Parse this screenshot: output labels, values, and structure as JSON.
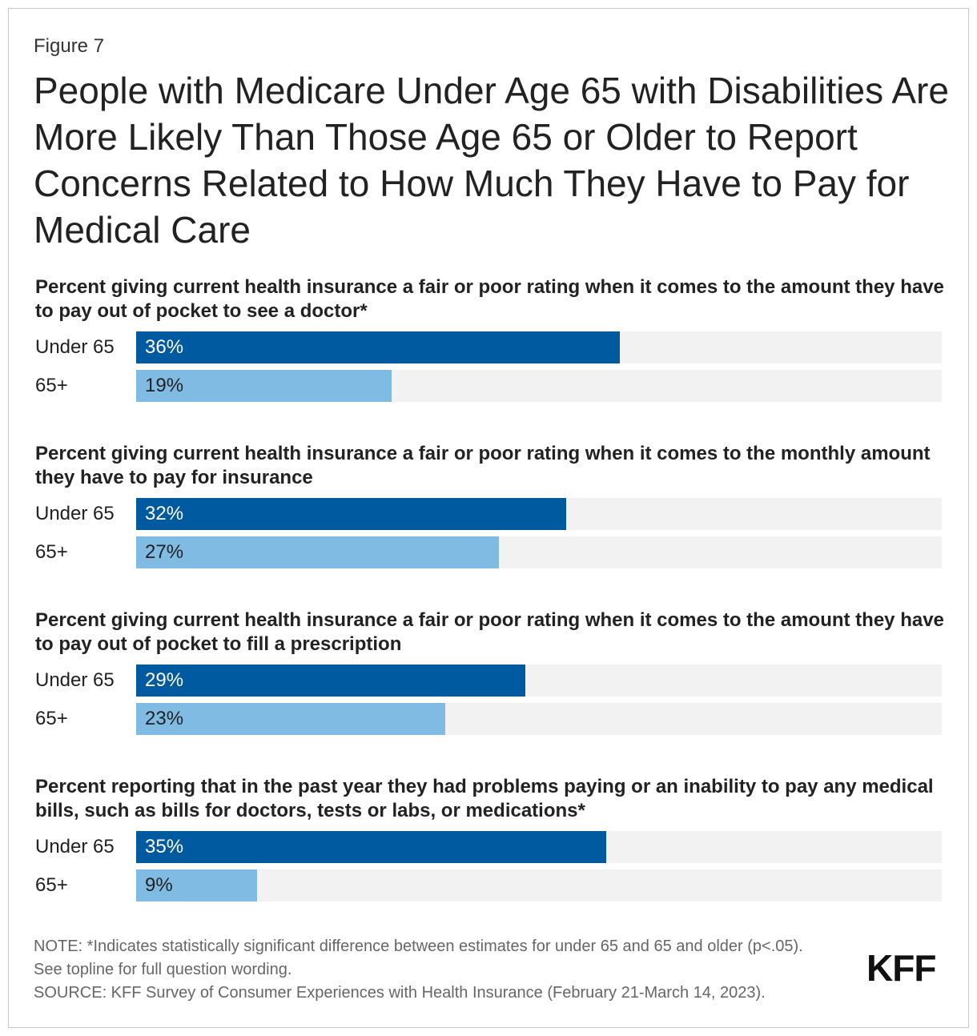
{
  "figure_label": "Figure 7",
  "title": "People with Medicare Under Age 65 with Disabilities Are More Likely Than Those Age 65 or Older to Report Concerns Related to How Much They Have to Pay for Medical Care",
  "colors": {
    "under65": "#005aa0",
    "over65": "#80bbe3",
    "track": "#f2f2f2",
    "under65_text": "#ffffff",
    "over65_text": "#222222"
  },
  "chart_data": {
    "type": "bar",
    "orientation": "horizontal",
    "xlim": [
      0,
      60
    ],
    "series_names": [
      "Under 65",
      "65+"
    ],
    "panels": [
      {
        "title": "Percent giving current health insurance a fair or poor rating when it comes to the amount they have to pay out of pocket to see a doctor*",
        "bars": [
          {
            "label": "Under 65",
            "value": 36,
            "value_label": "36%"
          },
          {
            "label": "65+",
            "value": 19,
            "value_label": "19%"
          }
        ]
      },
      {
        "title": "Percent giving current health insurance a fair or poor rating when it comes to the monthly amount they have to pay for insurance",
        "bars": [
          {
            "label": "Under 65",
            "value": 32,
            "value_label": "32%"
          },
          {
            "label": "65+",
            "value": 27,
            "value_label": "27%"
          }
        ]
      },
      {
        "title": "Percent giving current health insurance a fair or poor rating when it comes to the amount they have to pay out of pocket to fill a prescription",
        "bars": [
          {
            "label": "Under 65",
            "value": 29,
            "value_label": "29%"
          },
          {
            "label": "65+",
            "value": 23,
            "value_label": "23%"
          }
        ]
      },
      {
        "title": "Percent reporting that in the past year they had problems paying or an inability to pay any medical bills, such as bills for doctors, tests or labs, or medications*",
        "bars": [
          {
            "label": "Under 65",
            "value": 35,
            "value_label": "35%"
          },
          {
            "label": "65+",
            "value": 9,
            "value_label": "9%"
          }
        ]
      }
    ]
  },
  "notes": {
    "note": "NOTE: *Indicates statistically significant difference between estimates for under 65 and 65 and older (p<.05). See topline for full question wording.",
    "source": "SOURCE: KFF Survey of Consumer Experiences with Health Insurance (February 21-March 14, 2023)."
  },
  "logo": "KFF"
}
